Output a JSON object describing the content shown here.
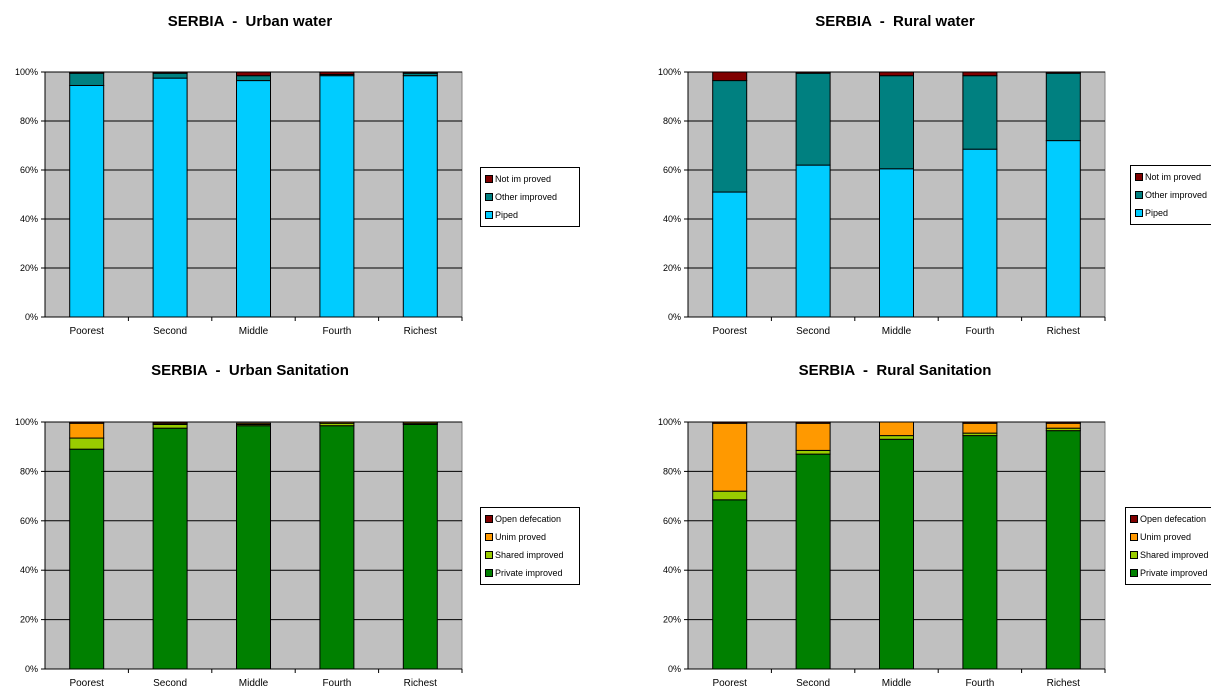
{
  "colors": {
    "plot_bg": "#c0c0c0",
    "grid": "#000000",
    "water": {
      "Piped": "#00ccff",
      "Other improved": "#008080",
      "Not improved": "#800000"
    },
    "sanitation": {
      "Private improved": "#008000",
      "Shared improved": "#99cc00",
      "Unimproved": "#ff9900",
      "Open defecation": "#800000"
    }
  },
  "chart_data": [
    {
      "id": "urban-water",
      "type": "bar",
      "stacked": true,
      "title": "SERBIA  -  Urban water",
      "categories": [
        "Poorest",
        "Second",
        "Middle",
        "Fourth",
        "Richest"
      ],
      "ylim": [
        0,
        100
      ],
      "yticks": [
        "0%",
        "20%",
        "40%",
        "60%",
        "80%",
        "100%"
      ],
      "grid": true,
      "legend_position": "right",
      "series": [
        {
          "name": "Piped",
          "values": [
            94.5,
            97.5,
            96.5,
            98.5,
            98.5
          ]
        },
        {
          "name": "Other improved",
          "values": [
            5,
            2,
            2,
            0.5,
            1
          ]
        },
        {
          "name": "Not improved",
          "values": [
            0.5,
            0.5,
            1.5,
            1,
            0.5
          ]
        }
      ],
      "legend_order": [
        "Not improved",
        "Other improved",
        "Piped"
      ],
      "legend_labels": {
        "Not improved": "Not im proved",
        "Other improved": "Other improved",
        "Piped": "Piped"
      }
    },
    {
      "id": "rural-water",
      "type": "bar",
      "stacked": true,
      "title": "SERBIA  -  Rural water",
      "categories": [
        "Poorest",
        "Second",
        "Middle",
        "Fourth",
        "Richest"
      ],
      "ylim": [
        0,
        100
      ],
      "yticks": [
        "0%",
        "20%",
        "40%",
        "60%",
        "80%",
        "100%"
      ],
      "grid": true,
      "legend_position": "right",
      "series": [
        {
          "name": "Piped",
          "values": [
            51,
            62,
            60.5,
            68.5,
            72
          ]
        },
        {
          "name": "Other improved",
          "values": [
            45.5,
            37.5,
            38,
            30,
            27.5
          ]
        },
        {
          "name": "Not improved",
          "values": [
            3.5,
            0.5,
            1.5,
            1.5,
            0.5
          ]
        }
      ],
      "legend_order": [
        "Not improved",
        "Other improved",
        "Piped"
      ],
      "legend_labels": {
        "Not improved": "Not im proved",
        "Other improved": "Other improved",
        "Piped": "Piped"
      }
    },
    {
      "id": "urban-sanitation",
      "type": "bar",
      "stacked": true,
      "title": "SERBIA  -  Urban Sanitation",
      "categories": [
        "Poorest",
        "Second",
        "Middle",
        "Fourth",
        "Richest"
      ],
      "ylim": [
        0,
        100
      ],
      "yticks": [
        "0%",
        "20%",
        "40%",
        "60%",
        "80%",
        "100%"
      ],
      "grid": true,
      "legend_position": "right",
      "series": [
        {
          "name": "Private improved",
          "values": [
            89,
            97.5,
            98.5,
            98.5,
            99
          ]
        },
        {
          "name": "Shared improved",
          "values": [
            4.5,
            1.5,
            0.5,
            1,
            0.5
          ]
        },
        {
          "name": "Unimproved",
          "values": [
            6,
            0.5,
            0.5,
            0.5,
            0.5
          ]
        },
        {
          "name": "Open defecation",
          "values": [
            0.5,
            0.5,
            0,
            0,
            0
          ]
        }
      ],
      "legend_order": [
        "Open defecation",
        "Unimproved",
        "Shared improved",
        "Private improved"
      ],
      "legend_labels": {
        "Open defecation": "Open defecation",
        "Unimproved": "Unim proved",
        "Shared improved": "Shared improved",
        "Private improved": "Private improved"
      }
    },
    {
      "id": "rural-sanitation",
      "type": "bar",
      "stacked": true,
      "title": "SERBIA  -  Rural Sanitation",
      "categories": [
        "Poorest",
        "Second",
        "Middle",
        "Fourth",
        "Richest"
      ],
      "ylim": [
        0,
        100
      ],
      "yticks": [
        "0%",
        "20%",
        "40%",
        "60%",
        "80%",
        "100%"
      ],
      "grid": true,
      "legend_position": "right",
      "series": [
        {
          "name": "Private improved",
          "values": [
            68.5,
            87,
            93,
            94.5,
            96.5
          ]
        },
        {
          "name": "Shared improved",
          "values": [
            3.5,
            1.5,
            1.5,
            1,
            1
          ]
        },
        {
          "name": "Unimproved",
          "values": [
            27.5,
            11,
            5.5,
            4,
            2
          ]
        },
        {
          "name": "Open defecation",
          "values": [
            0.5,
            0.5,
            0,
            0.5,
            0.5
          ]
        }
      ],
      "legend_order": [
        "Open defecation",
        "Unimproved",
        "Shared improved",
        "Private improved"
      ],
      "legend_labels": {
        "Open defecation": "Open defecation",
        "Unimproved": "Unim proved",
        "Shared improved": "Shared improved",
        "Private improved": "Private improved"
      }
    }
  ]
}
